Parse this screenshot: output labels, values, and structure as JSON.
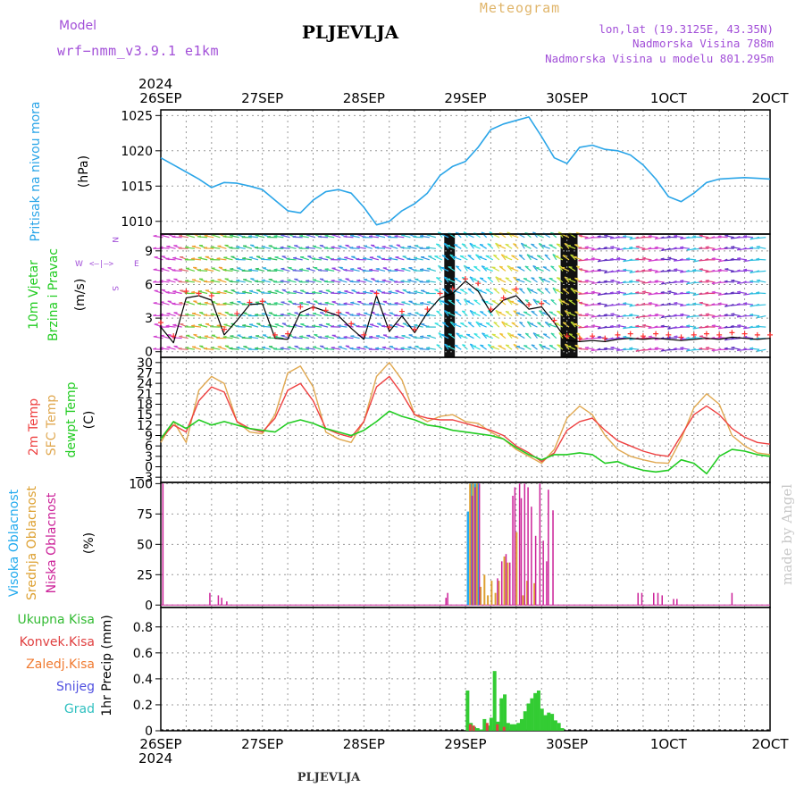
{
  "header": {
    "model_label": "Model",
    "model_value": "wrf−nmm_v3.9.1  e1km",
    "station": "PLJEVLJA",
    "meteogram": "Meteogram",
    "lonlat": "lon,lat (19.3125E, 43.35N)",
    "elev": "Nadmorska Visina 788m",
    "elev_model": "Nadmorska Visina u modelu 801.295m",
    "footer_station": "PLJEVLJA",
    "watermark": "made by Angel"
  },
  "time_axis": {
    "year": "2024",
    "labels": [
      "26SEP",
      "27SEP",
      "28SEP",
      "29SEP",
      "30SEP",
      "1OCT",
      "2OCT"
    ],
    "hours_total": 144
  },
  "colors": {
    "pressure": "#2aa5e8",
    "wind_speed": "#000000",
    "gust": "#ff3030",
    "t2m": "#ee4040",
    "tsfc": "#e0a850",
    "dewpt": "#22cc22",
    "cloud_high": "#22aaee",
    "cloud_mid": "#dda030",
    "cloud_low": "#cc2299",
    "precip": "#33cc33",
    "precip_conv": "#e04040",
    "grid": "#999999",
    "purple": "#a24fd8"
  },
  "panels": [
    {
      "id": "pressure",
      "labels": [
        {
          "text": "Pritisak na nivou mora",
          "color": "#2aa5e8"
        }
      ],
      "unit": "(hPa)",
      "yticks": [
        "1010",
        "1015",
        "1020",
        "1025"
      ]
    },
    {
      "id": "wind",
      "labels": [
        {
          "text": "10m Vjetar",
          "color": "#22cc22"
        },
        {
          "text": "Brzina i Pravac",
          "color": "#22cc22"
        }
      ],
      "unit": "(m/s)",
      "yticks": [
        "0",
        "3",
        "6",
        "9"
      ],
      "compass": {
        "n": "N",
        "w": "W",
        "e": "E",
        "s": "S",
        "glyph": "<—|—>"
      }
    },
    {
      "id": "temp",
      "labels": [
        {
          "text": "2m Temp",
          "color": "#ee4040"
        },
        {
          "text": "SFC Temp",
          "color": "#e0a850"
        },
        {
          "text": "dewpt Temp",
          "color": "#22cc22"
        }
      ],
      "unit": "(C)",
      "yticks": [
        "−3",
        "0",
        "3",
        "6",
        "9",
        "12",
        "15",
        "18",
        "21",
        "24",
        "27",
        "30"
      ]
    },
    {
      "id": "cloud",
      "labels": [
        {
          "text": "Visoka Oblacnost",
          "color": "#22aaee"
        },
        {
          "text": "Srednja Oblacnost",
          "color": "#dda030"
        },
        {
          "text": "Niska Oblacnost",
          "color": "#cc2299"
        }
      ],
      "unit": "(%)",
      "yticks": [
        "0",
        "25",
        "50",
        "75",
        "100"
      ]
    },
    {
      "id": "precip",
      "legend": [
        {
          "text": "Ukupna Kisa",
          "color": "#33bb33"
        },
        {
          "text": "Konvek.Kisa",
          "color": "#e04040"
        },
        {
          "text": "Zaledj.Kisa",
          "color": "#f07a30"
        },
        {
          "text": "Snijeg",
          "color": "#5050e0"
        },
        {
          "text": "Grad",
          "color": "#30c0c0"
        }
      ],
      "unit": "1hr Precip (mm)",
      "yticks": [
        "0",
        "0.2",
        "0.4",
        "0.6",
        "0.8"
      ]
    }
  ],
  "chart_data": [
    {
      "type": "line",
      "ylabel": "Pritisak na nivou mora (hPa)",
      "ylim": [
        1008.2,
        1025.8
      ],
      "x_hours": [
        0,
        3,
        6,
        9,
        12,
        15,
        18,
        21,
        24,
        27,
        30,
        33,
        36,
        39,
        42,
        45,
        48,
        51,
        54,
        57,
        60,
        63,
        66,
        69,
        72,
        75,
        78,
        81,
        84,
        87,
        90,
        93,
        96,
        99,
        102,
        105,
        108,
        111,
        114,
        117,
        120,
        123,
        126,
        129,
        132,
        135,
        138,
        141,
        144
      ],
      "series": [
        {
          "values": [
            1019,
            1018,
            1017,
            1016,
            1014.8,
            1015.5,
            1015.4,
            1015,
            1014.5,
            1013,
            1011.5,
            1011.2,
            1013,
            1014.2,
            1014.5,
            1014,
            1012,
            1009.5,
            1010,
            1011.5,
            1012.5,
            1014,
            1016.5,
            1017.8,
            1018.5,
            1020.5,
            1023,
            1023.8,
            1024.3,
            1024.8,
            1022,
            1019,
            1018.2,
            1020.5,
            1020.8,
            1020.2,
            1020,
            1019.4,
            1018,
            1016,
            1013.5,
            1012.8,
            1014,
            1015.5,
            1016,
            1016.1,
            1016.2,
            1016.1,
            1016
          ]
        }
      ]
    },
    {
      "type": "line",
      "ylabel": "10m Vjetar Brzina i Pravac (m/s)",
      "ylim": [
        -0.5,
        10.5
      ],
      "x_hours": [
        0,
        3,
        6,
        9,
        12,
        15,
        18,
        21,
        24,
        27,
        30,
        33,
        36,
        39,
        42,
        45,
        48,
        51,
        54,
        57,
        60,
        63,
        66,
        69,
        72,
        75,
        78,
        81,
        84,
        87,
        90,
        93,
        96,
        99,
        102,
        105,
        108,
        111,
        114,
        117,
        120,
        123,
        126,
        129,
        132,
        135,
        138,
        141,
        144
      ],
      "series": [
        {
          "values": [
            2.2,
            0.8,
            4.8,
            5,
            4.6,
            1.5,
            2.8,
            4.2,
            4.3,
            1.2,
            1.1,
            3.5,
            4,
            3.6,
            3.2,
            2.1,
            1.1,
            5,
            1.8,
            3.2,
            1.7,
            3.5,
            4.8,
            5.2,
            6.3,
            5.4,
            3.5,
            4.6,
            5,
            3.8,
            4,
            2.6,
            1,
            0.9,
            1,
            0.9,
            1.1,
            1.2,
            1.1,
            1.2,
            1.1,
            1,
            1.1,
            1.2,
            1.1,
            1.3,
            1.2,
            1.1,
            1.2
          ]
        },
        {
          "values": [
            2.6,
            1.4,
            5.4,
            5.2,
            5,
            2,
            3.4,
            4.4,
            4.5,
            1.5,
            1.6,
            4,
            3.9,
            3.7,
            3.5,
            2.5,
            1.5,
            5.2,
            2.2,
            3.6,
            2,
            3.8,
            5.2,
            5.6,
            6.5,
            6.1,
            3.8,
            4.8,
            5.6,
            4.2,
            4.3,
            2.8,
            1.4,
            1.2,
            1.4,
            1.2,
            1.5,
            1.6,
            1.4,
            1.6,
            1.5,
            1.3,
            1.5,
            1.6,
            1.5,
            1.7,
            1.6,
            1.5,
            1.5
          ]
        }
      ]
    },
    {
      "type": "line",
      "ylabel": "Temp (C)",
      "ylim": [
        -4.5,
        31.5
      ],
      "x_hours": [
        0,
        3,
        6,
        9,
        12,
        15,
        18,
        21,
        24,
        27,
        30,
        33,
        36,
        39,
        42,
        45,
        48,
        51,
        54,
        57,
        60,
        63,
        66,
        69,
        72,
        75,
        78,
        81,
        84,
        87,
        90,
        93,
        96,
        99,
        102,
        105,
        108,
        111,
        114,
        117,
        120,
        123,
        126,
        129,
        132,
        135,
        138,
        141,
        144
      ],
      "series": [
        {
          "name": "2m Temp",
          "values": [
            8,
            12,
            10,
            19,
            23,
            21.5,
            13,
            11,
            10,
            14,
            22,
            24,
            19,
            11,
            9.5,
            8.5,
            13,
            23,
            26,
            21,
            15,
            14,
            13.5,
            13.5,
            12.5,
            11.5,
            10.5,
            9,
            6,
            4,
            1.5,
            4,
            10.5,
            13,
            14,
            10.5,
            7.5,
            6,
            4.5,
            3.5,
            3,
            9,
            15,
            17.5,
            15,
            11,
            8.5,
            7,
            6.5
          ]
        },
        {
          "name": "SFC Temp",
          "values": [
            7,
            13,
            7,
            22,
            26,
            24,
            13,
            10,
            9.5,
            15,
            27,
            29,
            23,
            10,
            8,
            7,
            13,
            26,
            30,
            25,
            15,
            13,
            14.5,
            15,
            13,
            12.5,
            10,
            8,
            5,
            3,
            1,
            5,
            14,
            17.5,
            15,
            9,
            5,
            3,
            2,
            1.2,
            1,
            8,
            17,
            21,
            18,
            9,
            6,
            4,
            3.5
          ]
        },
        {
          "name": "dewpt Temp",
          "values": [
            8,
            13,
            11,
            13.5,
            12,
            13,
            12,
            11,
            10.5,
            10,
            12.5,
            13.5,
            12.5,
            11,
            10,
            9,
            10.5,
            13,
            16,
            14.5,
            13.5,
            12,
            11.5,
            10.5,
            10,
            9.5,
            9,
            8,
            5.5,
            3.5,
            2,
            3.5,
            3.5,
            4,
            3.5,
            1,
            1.5,
            0,
            -1,
            -1.5,
            -1,
            2,
            1,
            -2,
            3,
            5,
            4.5,
            3.5,
            3
          ]
        }
      ]
    },
    {
      "type": "bar",
      "ylabel": "Oblacnost (%)",
      "ylim": [
        -2,
        101
      ],
      "x_hours_series": true,
      "series": [
        {
          "name": "Visoka Oblacnost",
          "x_hours": [
            72.6,
            73.3,
            74.3,
            75.1
          ],
          "values": [
            77,
            100,
            100,
            100
          ]
        },
        {
          "name": "Srednja Oblacnost",
          "x_hours": [
            73.1,
            73.8,
            74.7,
            75.6,
            76.5,
            77.3,
            78.2,
            79.1,
            79.9,
            81.2,
            82.0,
            84.1,
            85.6,
            86.6,
            88.3
          ],
          "values": [
            100,
            100,
            100,
            15,
            25,
            8,
            20,
            10,
            20,
            40,
            35,
            60,
            8,
            20,
            18
          ]
        },
        {
          "name": "Niska Oblacnost",
          "x_hours": [
            0.5,
            11.6,
            13.6,
            14.4,
            15.6,
            67.4,
            67.8,
            73.6,
            74.3,
            75.3,
            79.6,
            80.6,
            81.6,
            82.5,
            83.2,
            83.7,
            84.8,
            85.2,
            86.0,
            86.8,
            87.6,
            88.6,
            89.6,
            90.4,
            91.2,
            91.6,
            92.7,
            112.8,
            113.7,
            116.5,
            117.5,
            118.5,
            121.2,
            122.0,
            135.0
          ],
          "values": [
            100,
            10,
            8,
            6,
            3,
            6,
            10,
            90,
            97,
            100,
            22,
            36,
            42,
            35,
            90,
            97,
            100,
            88,
            100,
            97,
            81,
            57,
            100,
            53,
            36,
            95,
            78,
            10,
            10,
            10,
            10,
            8,
            5,
            5,
            10
          ]
        }
      ]
    },
    {
      "type": "bar",
      "ylabel": "1hr Precip (mm)",
      "ylim": [
        0,
        0.95
      ],
      "series": [
        {
          "name": "Ukupna Kisa",
          "x_hours": [
            72.5,
            73.3,
            74.1,
            74.9,
            75.7,
            76.5,
            77.3,
            78.1,
            78.9,
            79.7,
            80.5,
            81.3,
            82.1,
            82.9,
            83.7,
            84.5,
            85.3,
            86.1,
            86.9,
            87.7,
            88.5,
            89.3,
            90.1,
            90.9,
            91.7,
            92.5,
            93.3,
            94.1,
            94.9
          ],
          "values": [
            0.31,
            0.06,
            0.03,
            0.02,
            0.01,
            0.09,
            0.04,
            0.1,
            0.46,
            0.07,
            0.25,
            0.28,
            0.06,
            0.05,
            0.05,
            0.06,
            0.09,
            0.15,
            0.21,
            0.25,
            0.29,
            0.31,
            0.17,
            0.12,
            0.14,
            0.13,
            0.08,
            0.06,
            0.02
          ]
        },
        {
          "name": "Konvek.Kisa",
          "x_hours": [
            72.5,
            73.3,
            76.5,
            78.9,
            80.5
          ],
          "values": [
            0.05,
            0.04,
            0.06,
            0.05,
            0.03
          ]
        }
      ]
    }
  ]
}
